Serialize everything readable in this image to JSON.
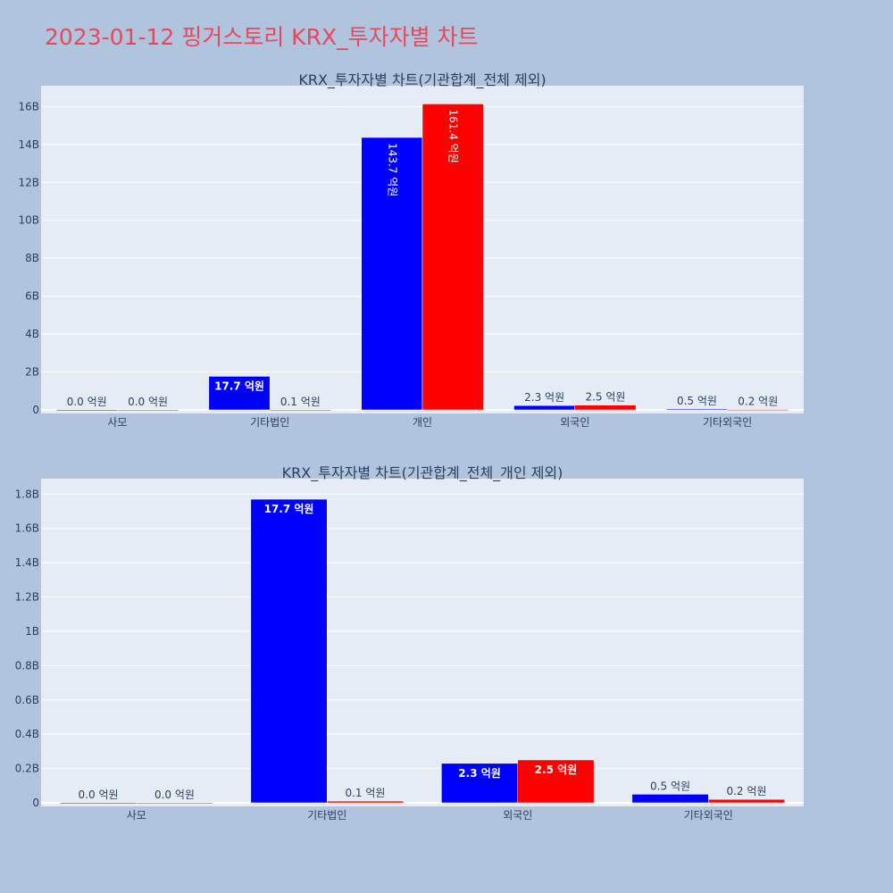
{
  "page": {
    "title": "2023-01-12 핑거스토리 KRX_투자자별 차트"
  },
  "colors": {
    "buy": "#0000ff",
    "sell": "#ff0000",
    "plot_bg": "#e5ecf6",
    "paper_bg": "#b0c4de",
    "title": "#e8485c"
  },
  "chart_data": [
    {
      "type": "bar",
      "title": "KRX_투자자별 차트(기관합계_전체 제외)",
      "categories": [
        "사모",
        "기타법인",
        "개인",
        "외국인",
        "기타외국인"
      ],
      "series": [
        {
          "values": [
            0,
            1770000000,
            14370000000,
            230000000,
            50000000
          ],
          "labels": [
            "0.0 억원",
            "17.7 억원",
            "143.7 억원",
            "2.3 억원",
            "0.5 억원"
          ]
        },
        {
          "values": [
            0,
            10000000,
            16140000000,
            250000000,
            20000000
          ],
          "labels": [
            "0.0 억원",
            "0.1 억원",
            "161.4 억원",
            "2.5 억원",
            "0.2 억원"
          ]
        }
      ],
      "ylim": [
        0,
        17100000000
      ],
      "yticks": [
        0,
        2000000000,
        4000000000,
        6000000000,
        8000000000,
        10000000000,
        12000000000,
        14000000000,
        16000000000
      ],
      "ytick_labels": [
        "0",
        "2B",
        "4B",
        "6B",
        "8B",
        "10B",
        "12B",
        "14B",
        "16B"
      ],
      "grid": true,
      "legend": "none"
    },
    {
      "type": "bar",
      "title": "KRX_투자자별 차트(기관합계_전체_개인 제외)",
      "categories": [
        "사모",
        "기타법인",
        "외국인",
        "기타외국인"
      ],
      "series": [
        {
          "values": [
            0,
            1770000000,
            230000000,
            50000000
          ],
          "labels": [
            "0.0 억원",
            "17.7 억원",
            "2.3 억원",
            "0.5 억원"
          ]
        },
        {
          "values": [
            0,
            10000000,
            250000000,
            20000000
          ],
          "labels": [
            "0.0 억원",
            "0.1 억원",
            "2.5 억원",
            "0.2 억원"
          ]
        }
      ],
      "ylim": [
        0,
        1890000000
      ],
      "yticks": [
        0,
        200000000,
        400000000,
        600000000,
        800000000,
        1000000000,
        1200000000,
        1400000000,
        1600000000,
        1800000000
      ],
      "ytick_labels": [
        "0",
        "0.2B",
        "0.4B",
        "0.6B",
        "0.8B",
        "1B",
        "1.2B",
        "1.4B",
        "1.6B",
        "1.8B"
      ],
      "grid": true,
      "legend": "none"
    }
  ]
}
